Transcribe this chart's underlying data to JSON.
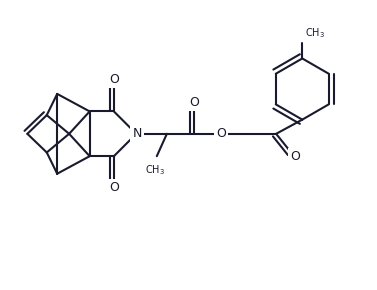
{
  "background_color": "#ffffff",
  "line_color": "#1a1a2e",
  "line_width": 1.5,
  "figsize": [
    3.77,
    2.9
  ],
  "dpi": 100,
  "xlim": [
    0,
    10
  ],
  "ylim": [
    0,
    7.7
  ]
}
